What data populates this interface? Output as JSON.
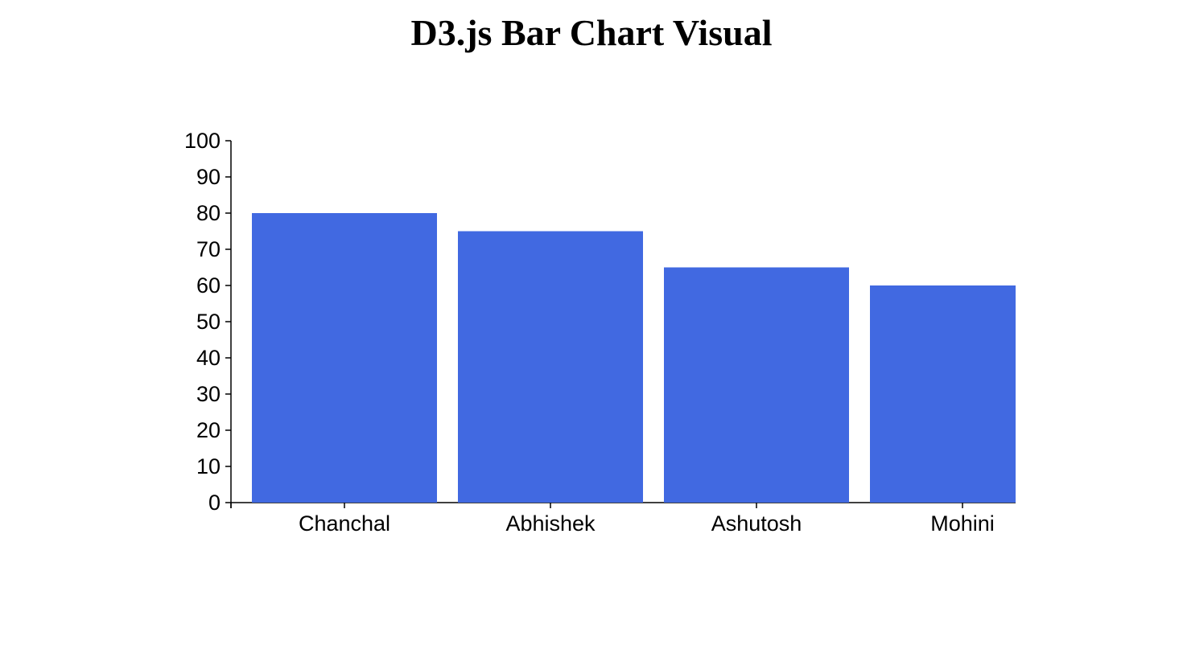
{
  "page": {
    "title": "D3.js Bar Chart Visual"
  },
  "chart_data": {
    "type": "bar",
    "title": "D3.js Bar Chart Visual",
    "categories": [
      "Chanchal",
      "Abhishek",
      "Ashutosh",
      "Mohini"
    ],
    "values": [
      80,
      75,
      65,
      60
    ],
    "xlabel": "",
    "ylabel": "",
    "ylim": [
      0,
      100
    ],
    "yticks": [
      "0",
      "10",
      "20",
      "30",
      "40",
      "50",
      "60",
      "70",
      "80",
      "90",
      "100"
    ],
    "grid": false,
    "legend": "none",
    "bar_color": "#4169E1",
    "axis_color": "#000000"
  }
}
